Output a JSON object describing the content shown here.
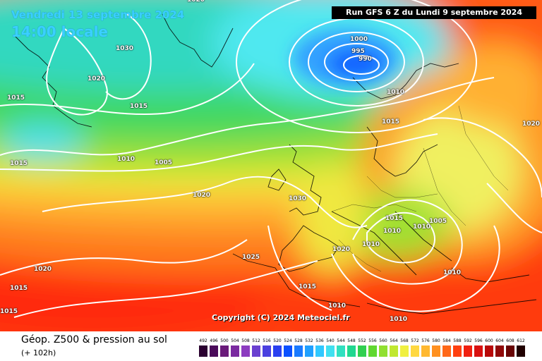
{
  "header": {
    "date": "Vendredi 13 septembre 2024",
    "time": "14:00 locale",
    "run": "Run GFS 6 Z du Lundi 9 septembre 2024"
  },
  "copyright": "Copyright (C) 2024 Meteociel.fr",
  "footer": {
    "title": "Géop. Z500 & pression au sol",
    "subtitle": "(+ 102h)"
  },
  "isobars": [
    {
      "label": "1020"
    },
    {
      "label": "1030"
    },
    {
      "label": "1020"
    },
    {
      "label": "1015"
    },
    {
      "label": "1015"
    },
    {
      "label": "1015"
    },
    {
      "label": "1010"
    },
    {
      "label": "1005"
    },
    {
      "label": "1020"
    },
    {
      "label": "1030"
    },
    {
      "label": "1000"
    },
    {
      "label": "995"
    },
    {
      "label": "990"
    },
    {
      "label": "1010"
    },
    {
      "label": "1015"
    },
    {
      "label": "1020"
    },
    {
      "label": "1015"
    },
    {
      "label": "1010"
    },
    {
      "label": "1010"
    },
    {
      "label": "1005"
    },
    {
      "label": "1020"
    },
    {
      "label": "1010"
    },
    {
      "label": "1025"
    },
    {
      "label": "1020"
    },
    {
      "label": "1015"
    },
    {
      "label": "1015"
    },
    {
      "label": "1015"
    },
    {
      "label": "1010"
    },
    {
      "label": "1010"
    },
    {
      "label": "1010"
    }
  ],
  "legend": {
    "labels": [
      "492",
      "496",
      "500",
      "504",
      "508",
      "512",
      "516",
      "520",
      "524",
      "528",
      "532",
      "536",
      "540",
      "544",
      "548",
      "552",
      "556",
      "560",
      "564",
      "568",
      "572",
      "576",
      "580",
      "584",
      "588",
      "592",
      "596",
      "600",
      "604",
      "608",
      "612"
    ],
    "colors": [
      "#2a0030",
      "#4a0a5a",
      "#6a1a7a",
      "#7a2aa0",
      "#8c3cc0",
      "#6a40d0",
      "#4a40e0",
      "#2a40f0",
      "#0a50ff",
      "#1a7aff",
      "#20a0ff",
      "#30c8ff",
      "#40e0f0",
      "#30e0c0",
      "#20d890",
      "#30d050",
      "#60d830",
      "#90e030",
      "#c0e830",
      "#f0f040",
      "#ffd840",
      "#ffb830",
      "#ff9020",
      "#ff6818",
      "#ff4010",
      "#f02010",
      "#d81010",
      "#b80808",
      "#900808",
      "#680404",
      "#200000"
    ]
  }
}
